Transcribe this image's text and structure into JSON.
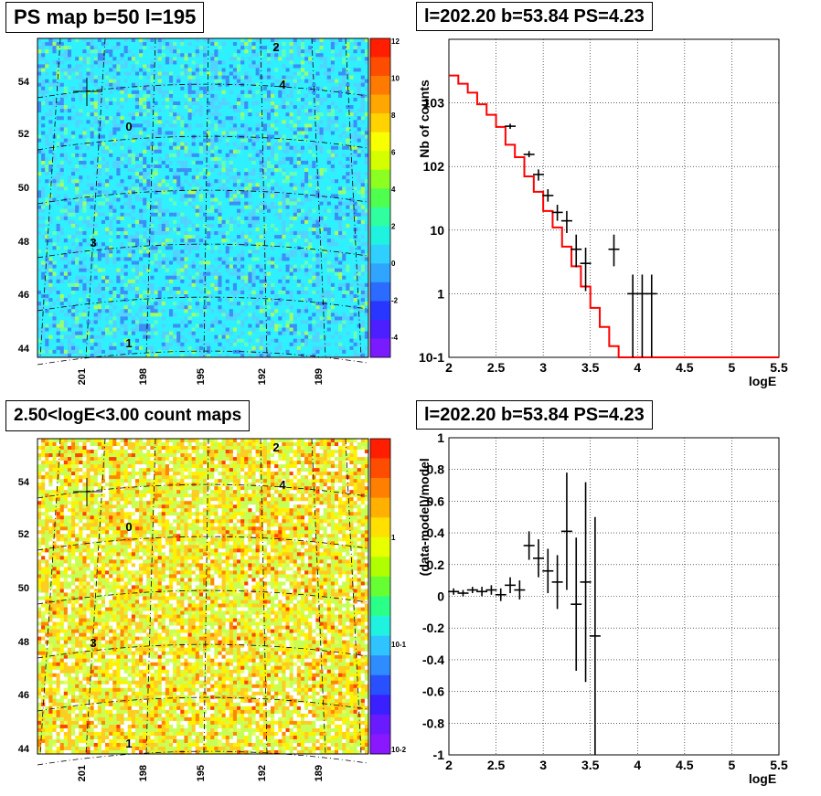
{
  "panels": {
    "tl_title": "PS map b=50 l=195",
    "tr_title": "l=202.20 b=53.84 PS=4.23",
    "bl_title": "2.50<logE<3.00 count maps",
    "br_title": "l=202.20 b=53.84 PS=4.23"
  },
  "colors": {
    "frame": "#000000",
    "model_line": "#ff0000",
    "grid": "#000000"
  },
  "chart_data": [
    {
      "type": "heatmap",
      "title": "PS map b=50 l=195",
      "ylabels": [
        "44",
        "46",
        "48",
        "50",
        "52",
        "54"
      ],
      "xlabels": [
        "201",
        "198",
        "195",
        "192",
        "189"
      ],
      "source_labels": [
        "0",
        "1",
        "2",
        "3",
        "4"
      ],
      "colorbar": {
        "ticks": [
          "12",
          "10",
          "8",
          "6",
          "4",
          "2",
          "0",
          "-2",
          "-4"
        ],
        "range": [
          -5,
          12
        ]
      }
    },
    {
      "type": "line",
      "title": "l=202.20 b=53.84 PS=4.23",
      "xlabel": "logE",
      "ylabel": "Nb of counts",
      "xlim": [
        2,
        5.5
      ],
      "ylim": [
        0.1,
        10000
      ],
      "yscale": "log",
      "xticks": [
        "2",
        "2.5",
        "3",
        "3.5",
        "4",
        "4.5",
        "5",
        "5.5"
      ],
      "yticks": [
        "10-1",
        "1",
        "10",
        "102",
        "103"
      ],
      "series": [
        {
          "kind": "step",
          "color": "#ff0000",
          "edges": [
            2.0,
            2.1,
            2.2,
            2.3,
            2.4,
            2.5,
            2.6,
            2.7,
            2.8,
            2.9,
            3.0,
            3.1,
            3.2,
            3.3,
            3.4,
            3.5,
            3.6,
            3.7,
            3.8,
            3.9,
            4.0,
            4.1,
            4.2,
            4.3,
            4.4,
            4.5,
            4.6,
            4.7,
            4.8,
            4.9,
            5.0,
            5.1,
            5.2,
            5.3,
            5.4,
            5.5
          ],
          "values": [
            2700,
            2000,
            1450,
            950,
            650,
            420,
            220,
            140,
            70,
            40,
            20,
            11,
            5.5,
            2.7,
            1.3,
            0.6,
            0.3,
            0.15,
            0.1,
            0.1,
            0.1,
            0.1,
            0.1,
            0.1,
            0.1,
            0.1,
            0.1,
            0.1,
            0.1,
            0.1,
            0.1,
            0.1,
            0.1,
            0.1,
            0.1
          ]
        },
        {
          "kind": "points",
          "color": "#000000",
          "x": [
            2.65,
            2.85,
            2.95,
            3.05,
            3.15,
            3.25,
            3.35,
            3.45,
            3.75,
            3.95,
            4.05,
            4.15
          ],
          "y": [
            430,
            155,
            75,
            35,
            19,
            14,
            5,
            3,
            5,
            1,
            1,
            1
          ],
          "ylow": [
            390,
            140,
            60,
            28,
            14,
            9,
            2.6,
            1.1,
            2.7,
            0.1,
            0.1,
            0.1
          ],
          "yhigh": [
            470,
            175,
            90,
            44,
            25,
            20,
            8.5,
            5.3,
            8.5,
            2,
            2,
            2
          ]
        }
      ]
    },
    {
      "type": "heatmap",
      "title": "2.50<logE<3.00 count maps",
      "ylabels": [
        "44",
        "46",
        "48",
        "50",
        "52",
        "54"
      ],
      "xlabels": [
        "201",
        "198",
        "195",
        "192",
        "189"
      ],
      "source_labels": [
        "0",
        "1",
        "2",
        "3",
        "4"
      ],
      "colorbar": {
        "ticks": [
          "1",
          "10-1",
          "10-2"
        ],
        "scale": "log"
      }
    },
    {
      "type": "scatter",
      "title": "l=202.20 b=53.84 PS=4.23",
      "xlabel": "logE",
      "ylabel": "(data-model)/model",
      "xlim": [
        2,
        5.5
      ],
      "ylim": [
        -1,
        1
      ],
      "xticks": [
        "2",
        "2.5",
        "3",
        "3.5",
        "4",
        "4.5",
        "5",
        "5.5"
      ],
      "yticks": [
        "-1",
        "-0.8",
        "-0.6",
        "-0.4",
        "-0.2",
        "0",
        "0.2",
        "0.4",
        "0.6",
        "0.8",
        "1"
      ],
      "series": [
        {
          "kind": "points",
          "color": "#000000",
          "x": [
            2.05,
            2.15,
            2.25,
            2.35,
            2.45,
            2.55,
            2.65,
            2.75,
            2.85,
            2.95,
            3.05,
            3.15,
            3.25,
            3.35,
            3.45,
            3.55
          ],
          "y": [
            0.03,
            0.02,
            0.04,
            0.03,
            0.04,
            0.01,
            0.07,
            0.04,
            0.32,
            0.24,
            0.16,
            0.09,
            0.41,
            -0.05,
            0.09,
            -0.25
          ],
          "err": [
            0.02,
            0.02,
            0.02,
            0.03,
            0.03,
            0.04,
            0.05,
            0.06,
            0.09,
            0.12,
            0.14,
            0.17,
            0.37,
            0.42,
            0.63,
            0.75
          ]
        }
      ]
    }
  ]
}
